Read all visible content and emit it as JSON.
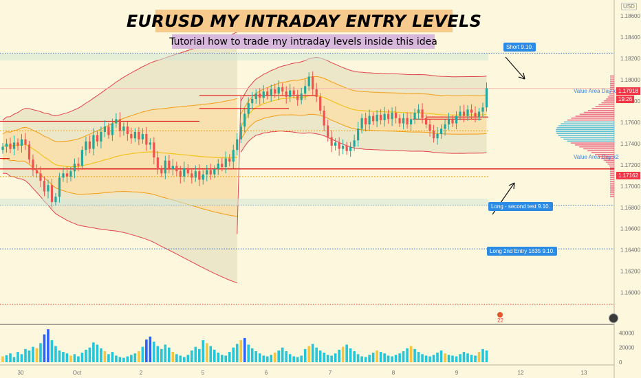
{
  "header": {
    "title": "EURUSD MY INTRADAY ENTRY LEVELS",
    "subtitle": "Tutorial how to trade my intraday levels inside this idea"
  },
  "currency_badge": "USD",
  "notes": [
    {
      "text": "Short 9.10."
    },
    {
      "text": "Long - second test 9.10."
    },
    {
      "text": "Long 2nd Entry 1635 9.10."
    }
  ],
  "value_area_labels": [
    "Value Area Day x2",
    "Value Area Day x2"
  ],
  "price_tags": [
    {
      "text": "1.17918",
      "color": "#f23645"
    },
    {
      "text": "19:26",
      "color": "#f23645"
    },
    {
      "text": "1.17162",
      "color": "#f23645"
    }
  ],
  "indicator_badge": "22",
  "colors": {
    "background": "#fdf8dd",
    "up": "#26a69a",
    "down": "#ef5350",
    "vwap_band": "#e0404a",
    "inner_band": "#f39c12",
    "level_red": "#e02020",
    "level_dotted": "#3b6fc4",
    "note_blue": "#2c8be5"
  },
  "chart_data": {
    "type": "candlestick",
    "symbol": "EURUSD",
    "ylim": [
      1.157,
      1.1875
    ],
    "y_ticks": [
      1.186,
      1.184,
      1.182,
      1.18,
      1.178,
      1.176,
      1.174,
      1.172,
      1.17,
      1.168,
      1.166,
      1.164,
      1.162,
      1.16
    ],
    "x_ticks": [
      "30",
      "Oct",
      "2",
      "5",
      "6",
      "7",
      "8",
      "9",
      "12",
      "13"
    ],
    "closes": [
      1.1737,
      1.174,
      1.1735,
      1.1741,
      1.1738,
      1.1744,
      1.1739,
      1.1725,
      1.1715,
      1.1712,
      1.1705,
      1.1695,
      1.1701,
      1.1685,
      1.169,
      1.1708,
      1.1712,
      1.1709,
      1.1714,
      1.1721,
      1.1719,
      1.1734,
      1.1742,
      1.1735,
      1.1748,
      1.1742,
      1.1751,
      1.1756,
      1.1748,
      1.1759,
      1.1763,
      1.1752,
      1.1756,
      1.1749,
      1.1745,
      1.1751,
      1.1744,
      1.1749,
      1.1739,
      1.1741,
      1.1727,
      1.1716,
      1.1712,
      1.1724,
      1.1716,
      1.1719,
      1.1714,
      1.1709,
      1.1717,
      1.1712,
      1.1708,
      1.1714,
      1.1706,
      1.1711,
      1.1715,
      1.1711,
      1.1716,
      1.1721,
      1.1718,
      1.1726,
      1.1723,
      1.1734,
      1.1744,
      1.1756,
      1.1768,
      1.1778,
      1.1782,
      1.1787,
      1.1783,
      1.1789,
      1.1785,
      1.1791,
      1.1787,
      1.1793,
      1.1789,
      1.1784,
      1.179,
      1.1786,
      1.1781,
      1.1787,
      1.1794,
      1.1803,
      1.1791,
      1.1784,
      1.1771,
      1.1757,
      1.1746,
      1.1738,
      1.1741,
      1.1735,
      1.1738,
      1.1733,
      1.1737,
      1.1743,
      1.1754,
      1.1764,
      1.1758,
      1.1766,
      1.1761,
      1.1767,
      1.1762,
      1.1768,
      1.1763,
      1.1769,
      1.1764,
      1.1759,
      1.1764,
      1.1758,
      1.1763,
      1.1769,
      1.1772,
      1.1764,
      1.1758,
      1.1752,
      1.1745,
      1.1749,
      1.1754,
      1.1758,
      1.1763,
      1.1759,
      1.1766,
      1.177,
      1.1766,
      1.1772,
      1.1769,
      1.1765,
      1.177,
      1.1774,
      1.1792
    ],
    "volume_ticks": [
      40000,
      20000,
      0
    ],
    "volume": [
      8000,
      9500,
      12000,
      7000,
      14000,
      11000,
      18000,
      16000,
      21000,
      19000,
      26000,
      38000,
      45000,
      30000,
      22000,
      16000,
      14000,
      12000,
      9000,
      11000,
      8000,
      13000,
      17000,
      20000,
      27000,
      24000,
      19000,
      15000,
      11000,
      14000,
      9000,
      7000,
      6000,
      8000,
      10000,
      12000,
      15000,
      21000,
      31000,
      35000,
      28000,
      22000,
      18000,
      24000,
      20000,
      14000,
      11000,
      9000,
      7000,
      10000,
      16000,
      21000,
      18000,
      30000,
      26000,
      22000,
      17000,
      13000,
      10000,
      9000,
      14000,
      20000,
      25000,
      30000,
      33000,
      24000,
      19000,
      15000,
      12000,
      9000,
      8000,
      10000,
      13000,
      16000,
      20000,
      15000,
      11000,
      8000,
      7000,
      9000,
      18000,
      22000,
      25000,
      20000,
      16000,
      13000,
      10000,
      9000,
      12000,
      17000,
      21000,
      24000,
      19000,
      15000,
      11000,
      8000,
      7000,
      10000,
      13000,
      16000,
      14000,
      12000,
      9000,
      8000,
      10000,
      12000,
      15000,
      19000,
      22000,
      18000,
      14000,
      11000,
      9000,
      8000,
      10000,
      13000,
      16000,
      12000,
      10000,
      9000,
      8000,
      11000,
      14000,
      12000,
      10000,
      9000,
      14000,
      18000,
      16000
    ],
    "horizontal_levels": [
      {
        "price": 1.1825,
        "style": "dotted",
        "color": "#3b6fc4"
      },
      {
        "price": 1.18215,
        "style": "zone",
        "color": "#cfe6d6"
      },
      {
        "price": 1.17918,
        "style": "solid",
        "color": "#f5b7b1"
      },
      {
        "price": 1.17162,
        "style": "solid",
        "color": "#e02020"
      },
      {
        "price": 1.1682,
        "style": "dotted",
        "color": "#3b6fc4"
      },
      {
        "price": 1.1685,
        "style": "zone",
        "color": "#cfe6d6"
      },
      {
        "price": 1.1641,
        "style": "dotted",
        "color": "#3b6fc4"
      },
      {
        "price": 1.1589,
        "style": "dotted",
        "color": "#e02020"
      }
    ]
  }
}
